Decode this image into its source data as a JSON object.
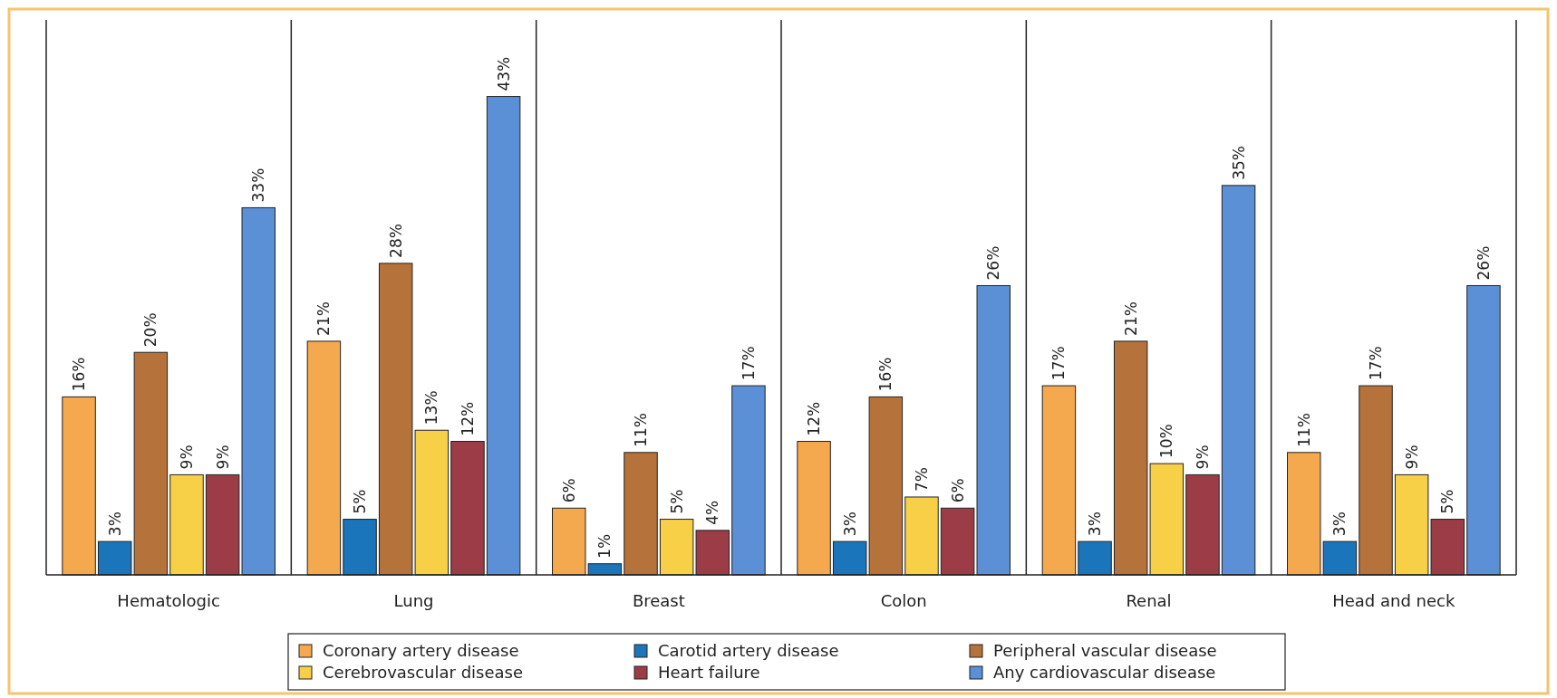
{
  "chart_data": {
    "type": "bar",
    "categories": [
      "Hematologic",
      "Lung",
      "Breast",
      "Colon",
      "Renal",
      "Head and neck"
    ],
    "series": [
      {
        "name": "Coronary artery disease",
        "color": "#f5a94e",
        "values": [
          16,
          21,
          6,
          12,
          17,
          11
        ],
        "value_labels": [
          "16%",
          "21%",
          "6%",
          "12%",
          "17%",
          "11%"
        ]
      },
      {
        "name": "Carotid artery disease",
        "color": "#1b75bb",
        "values": [
          3,
          5,
          1,
          3,
          3,
          3
        ],
        "value_labels": [
          "3%",
          "5%",
          "1%",
          "3%",
          "3%",
          "3%"
        ]
      },
      {
        "name": "Peripheral vascular disease",
        "color": "#b5723a",
        "values": [
          20,
          28,
          11,
          16,
          21,
          17
        ],
        "value_labels": [
          "20%",
          "28%",
          "11%",
          "16%",
          "21%",
          "17%"
        ]
      },
      {
        "name": "Cerebrovascular disease",
        "color": "#f8d048",
        "values": [
          9,
          13,
          5,
          7,
          10,
          9
        ],
        "value_labels": [
          "9%",
          "13%",
          "5%",
          "7%",
          "10%",
          "9%"
        ]
      },
      {
        "name": "Heart failure",
        "color": "#9c3c46",
        "values": [
          9,
          12,
          4,
          6,
          9,
          5
        ],
        "value_labels": [
          "9%",
          "12%",
          "4%",
          "6%",
          "9%",
          "5%"
        ]
      },
      {
        "name": "Any cardiovascular disease",
        "color": "#5b8fd6",
        "values": [
          33,
          43,
          17,
          26,
          35,
          26
        ],
        "value_labels": [
          "33%",
          "43%",
          "17%",
          "26%",
          "35%",
          "26%"
        ]
      }
    ],
    "legend": "bottom",
    "grid": false
  }
}
